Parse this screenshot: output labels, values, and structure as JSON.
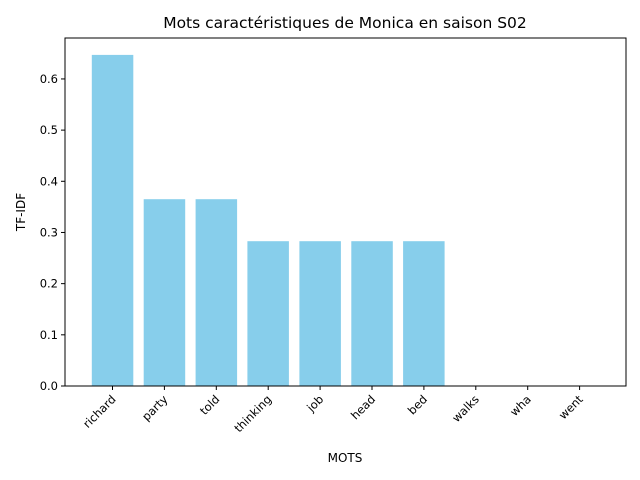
{
  "chart_data": {
    "type": "bar",
    "title": "Mots caractéristiques de Monica en saison S02",
    "xlabel": "MOTS",
    "ylabel": "TF-IDF",
    "categories": [
      "richard",
      "party",
      "told",
      "thinking",
      "job",
      "head",
      "bed",
      "walks",
      "wha",
      "went"
    ],
    "values": [
      0.647,
      0.365,
      0.365,
      0.283,
      0.283,
      0.283,
      0.283,
      0.0,
      0.0,
      0.0
    ],
    "ylim": [
      0,
      0.68
    ],
    "yticks": [
      "0.0",
      "0.1",
      "0.2",
      "0.3",
      "0.4",
      "0.5",
      "0.6"
    ],
    "bar_color": "#87ceeb",
    "grid": false,
    "legend": "none"
  }
}
